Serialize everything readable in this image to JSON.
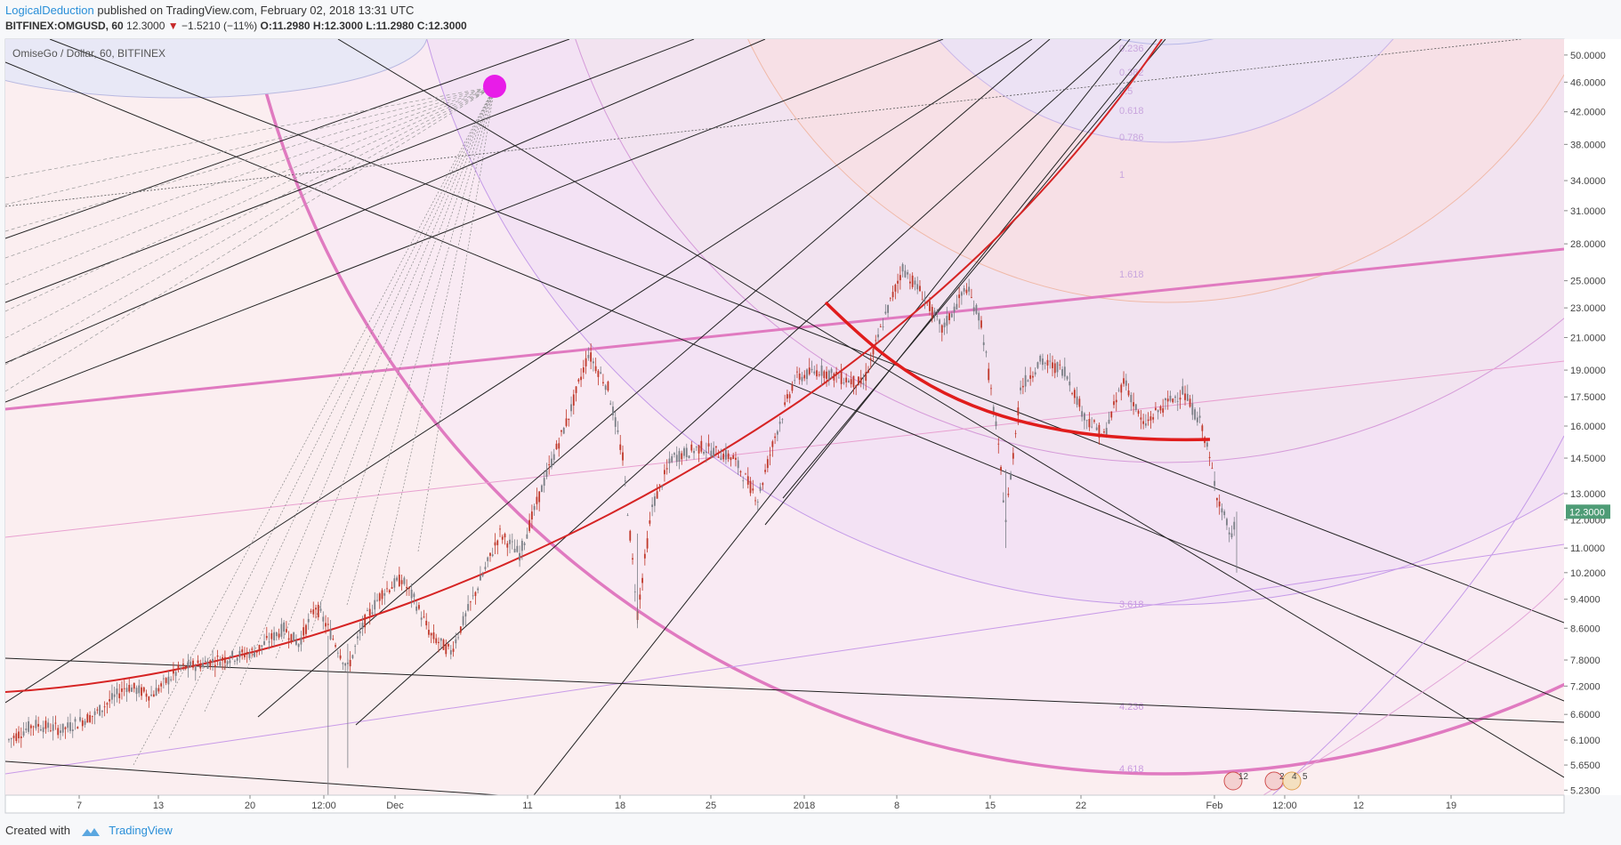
{
  "header": {
    "author": "LogicalDeduction",
    "published": "published on TradingView.com, February 02, 2018 13:31 UTC",
    "symbol": "BITFINEX:OMGUSD, 60",
    "last": "12.3000",
    "change": "−1.5210 (−11%)",
    "ohlc": {
      "o": "O:11.2980",
      "h": "H:12.3000",
      "l": "L:11.2980",
      "c": "C:12.3000"
    }
  },
  "chart_title": "OmiseGo / Dollar, 60, BITFINEX",
  "footer": {
    "created_with": "Created with",
    "brand": "TradingView"
  },
  "colors": {
    "background": "#ffffff",
    "candle_up": "#7a7f86",
    "candle_down": "#c0392b",
    "red_arc": "#e01c1c",
    "pink_fib": "#e07ac0",
    "violet_fib": "#b26ae0",
    "marker": "#e81ce8",
    "price_badge": "#4e9c76"
  },
  "chart_data": {
    "type": "candlestick",
    "price_scale": "log",
    "y_ticks": [
      "50.0000",
      "46.0000",
      "42.0000",
      "38.0000",
      "34.0000",
      "31.0000",
      "28.0000",
      "25.0000",
      "23.0000",
      "21.0000",
      "19.0000",
      "17.5000",
      "16.0000",
      "14.5000",
      "13.0000",
      "12.0000",
      "11.0000",
      "10.2000",
      "9.4000",
      "8.6000",
      "7.8000",
      "7.2000",
      "6.6000",
      "6.1000",
      "5.6500",
      "5.2300"
    ],
    "x_ticks": [
      "7",
      "13",
      "20",
      "12:00",
      "Dec",
      "11",
      "18",
      "25",
      "2018",
      "8",
      "15",
      "22",
      "Feb",
      "12:00",
      "12",
      "19"
    ],
    "last_price_label": "12.3000",
    "fib_labels_upper": [
      "0.236",
      "0.382",
      "0.5",
      "0.618",
      "0.786",
      "1",
      "1.618"
    ],
    "fib_labels_lower": [
      "3.618",
      "4.236",
      "4.618"
    ],
    "approx_price_path": [
      [
        0,
        6.1
      ],
      [
        10,
        6.4
      ],
      [
        22,
        6.3
      ],
      [
        35,
        6.6
      ],
      [
        48,
        7.2
      ],
      [
        58,
        7.0
      ],
      [
        70,
        7.6
      ],
      [
        85,
        7.8
      ],
      [
        100,
        8.0
      ],
      [
        112,
        8.6
      ],
      [
        118,
        8.2
      ],
      [
        125,
        9.2
      ],
      [
        130,
        8.6
      ],
      [
        138,
        7.6
      ],
      [
        145,
        8.8
      ],
      [
        152,
        9.6
      ],
      [
        160,
        10.0
      ],
      [
        165,
        9.4
      ],
      [
        172,
        8.4
      ],
      [
        180,
        8.0
      ],
      [
        190,
        9.6
      ],
      [
        200,
        11.5
      ],
      [
        208,
        10.8
      ],
      [
        218,
        13.5
      ],
      [
        228,
        16.5
      ],
      [
        236,
        20.0
      ],
      [
        244,
        18.0
      ],
      [
        250,
        14.5
      ],
      [
        256,
        9.0
      ],
      [
        262,
        12.5
      ],
      [
        270,
        14.5
      ],
      [
        282,
        15.0
      ],
      [
        295,
        14.5
      ],
      [
        305,
        12.8
      ],
      [
        312,
        15.5
      ],
      [
        320,
        18.5
      ],
      [
        330,
        19.0
      ],
      [
        340,
        18.5
      ],
      [
        348,
        18.2
      ],
      [
        356,
        22.0
      ],
      [
        364,
        26.0
      ],
      [
        372,
        24.0
      ],
      [
        380,
        21.5
      ],
      [
        390,
        24.5
      ],
      [
        396,
        22.0
      ],
      [
        402,
        16.0
      ],
      [
        406,
        12.0
      ],
      [
        412,
        18.0
      ],
      [
        420,
        19.5
      ],
      [
        430,
        19.0
      ],
      [
        438,
        16.5
      ],
      [
        446,
        15.5
      ],
      [
        454,
        18.5
      ],
      [
        462,
        16.0
      ],
      [
        470,
        17.0
      ],
      [
        478,
        17.8
      ],
      [
        486,
        16.0
      ],
      [
        492,
        13.0
      ],
      [
        498,
        11.3
      ],
      [
        500,
        12.3
      ]
    ]
  }
}
